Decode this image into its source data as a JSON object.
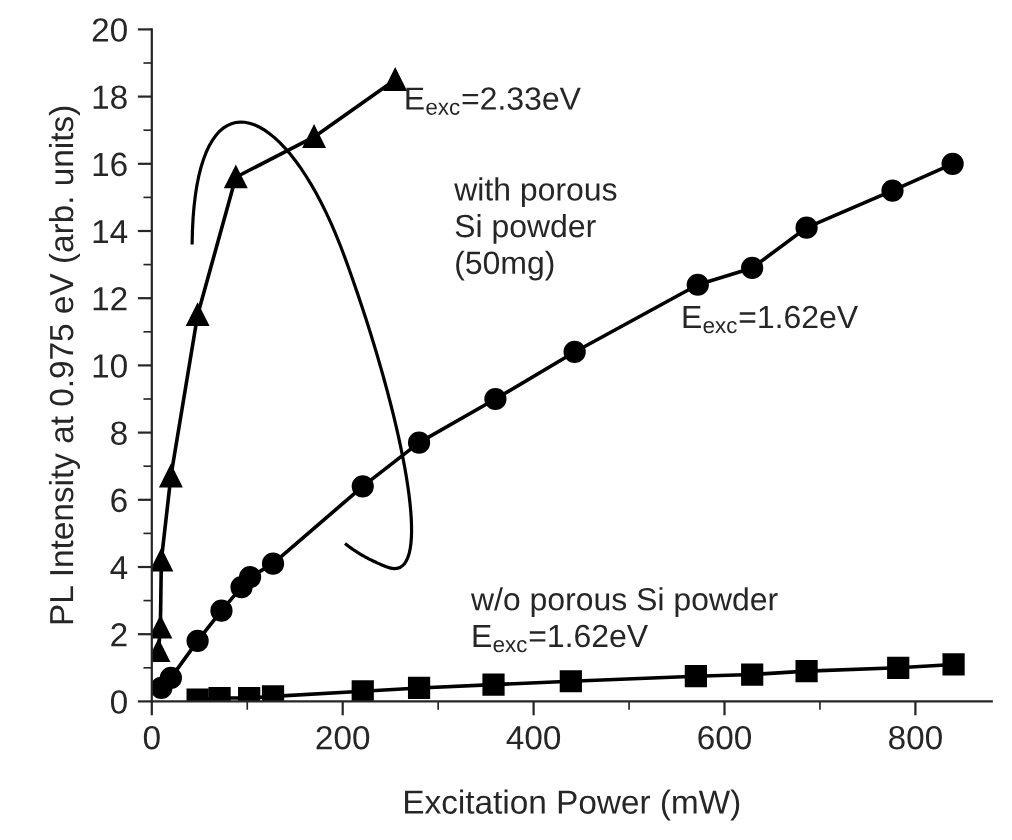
{
  "chart_data": {
    "type": "line",
    "xlabel": "Excitation Power (mW)",
    "ylabel": "PL Intensity at 0.975 eV (arb. units)",
    "xlim": [
      0,
      880
    ],
    "xticks": [
      0,
      200,
      400,
      600,
      800
    ],
    "ylim": [
      0,
      20
    ],
    "yticks": [
      0,
      2,
      4,
      6,
      8,
      10,
      12,
      14,
      16,
      18,
      20
    ],
    "grid": false,
    "legend": false,
    "line_style": "solid",
    "series": [
      {
        "color": "#000000",
        "marker": "triangle",
        "x": [
          7,
          9,
          10,
          20,
          48,
          88,
          170,
          255
        ],
        "values": [
          1.5,
          2.2,
          4.2,
          6.7,
          11.5,
          15.6,
          16.8,
          18.5
        ]
      },
      {
        "color": "#000000",
        "marker": "circle",
        "x": [
          10,
          20,
          48,
          73,
          94,
          103,
          127,
          221,
          280,
          360,
          443,
          572,
          629,
          686,
          776,
          839
        ],
        "values": [
          0.4,
          0.7,
          1.8,
          2.7,
          3.4,
          3.7,
          4.1,
          6.4,
          7.7,
          9.0,
          10.4,
          12.4,
          12.9,
          14.1,
          15.2,
          16.0
        ]
      },
      {
        "color": "#000000",
        "marker": "square",
        "x": [
          48,
          71,
          102,
          127,
          221,
          280,
          358,
          439,
          570,
          629,
          686,
          782,
          840
        ],
        "values": [
          0.05,
          0.1,
          0.1,
          0.15,
          0.3,
          0.4,
          0.5,
          0.6,
          0.75,
          0.8,
          0.9,
          1.0,
          1.1
        ]
      }
    ],
    "annotations": [
      "E$_{exc}$=2.33eV",
      "with porous\nSi powder\n(50mg)",
      "E$_{exc}$=1.62eV",
      "w/o porous Si powder\nE$_{exc}$=1.62eV"
    ]
  }
}
